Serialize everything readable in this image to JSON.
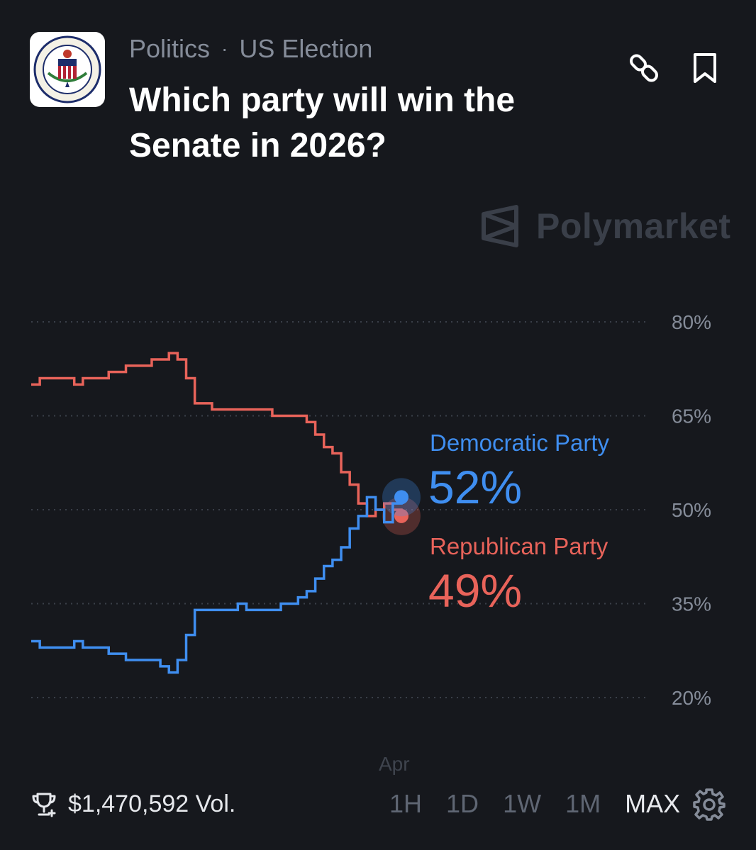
{
  "header": {
    "category": "Politics",
    "separator": "·",
    "subcategory": "US Election",
    "title": "Which party will win the Senate in 2026?",
    "seal_text": "UNITED STATES SENATE",
    "icons": {
      "seal": "us-senate-seal-icon",
      "link": "link-icon",
      "bookmark": "bookmark-icon"
    }
  },
  "watermark": {
    "text": "Polymarket",
    "icon": "polymarket-logo-icon"
  },
  "legend": {
    "democratic": {
      "name": "Democratic Party",
      "value": "52%",
      "color": "#3f8ef0"
    },
    "republican": {
      "name": "Republican Party",
      "value": "49%",
      "color": "#e8635a"
    }
  },
  "chart_data": {
    "type": "line",
    "y_ticks": [
      "80%",
      "65%",
      "50%",
      "35%",
      "20%"
    ],
    "y_tick_values": [
      80,
      65,
      50,
      35,
      20
    ],
    "ylim": [
      20,
      80
    ],
    "x_tick_labels": [
      "Apr"
    ],
    "grid": true,
    "legend_placement": "right of line end",
    "series": [
      {
        "name": "Republican Party",
        "color": "#e8635a",
        "values": [
          70,
          71,
          71,
          71,
          71,
          70,
          71,
          71,
          71,
          72,
          72,
          73,
          73,
          73,
          74,
          74,
          75,
          74,
          71,
          67,
          67,
          66,
          66,
          66,
          66,
          66,
          66,
          66,
          65,
          65,
          65,
          65,
          64,
          62,
          60,
          59,
          56,
          54,
          51,
          49,
          50,
          51,
          50,
          49
        ]
      },
      {
        "name": "Democratic Party",
        "color": "#3f8ef0",
        "values": [
          29,
          28,
          28,
          28,
          28,
          29,
          28,
          28,
          28,
          27,
          27,
          26,
          26,
          26,
          26,
          25,
          24,
          26,
          30,
          34,
          34,
          34,
          34,
          34,
          35,
          34,
          34,
          34,
          34,
          35,
          35,
          36,
          37,
          39,
          41,
          42,
          44,
          47,
          49,
          52,
          50,
          48,
          51,
          52
        ]
      }
    ]
  },
  "footer": {
    "volume": "$1,470,592 Vol.",
    "volume_icon": "trophy-icon",
    "ranges": [
      "1H",
      "1D",
      "1W",
      "1M",
      "MAX"
    ],
    "active_range": "MAX",
    "settings_icon": "gear-icon"
  }
}
